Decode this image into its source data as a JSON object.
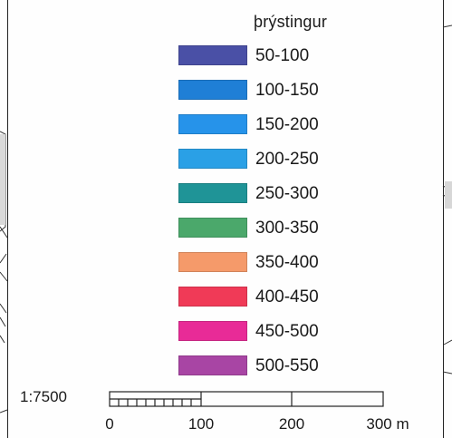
{
  "legend": {
    "title": "þrýstingur",
    "items": [
      {
        "label": "50-100",
        "color": "#4a50a6"
      },
      {
        "label": "100-150",
        "color": "#1f7fd6"
      },
      {
        "label": "150-200",
        "color": "#2693ea"
      },
      {
        "label": "200-250",
        "color": "#2aa0e6"
      },
      {
        "label": "250-300",
        "color": "#1f9497"
      },
      {
        "label": "300-350",
        "color": "#4ba86b"
      },
      {
        "label": "350-400",
        "color": "#f59a6a"
      },
      {
        "label": "400-450",
        "color": "#f03a57"
      },
      {
        "label": "450-500",
        "color": "#e82b97"
      },
      {
        "label": "500-550",
        "color": "#a845a4"
      }
    ]
  },
  "scale": {
    "ratio_label": "1:7500",
    "ticks": [
      "0",
      "100",
      "200",
      "300 m"
    ]
  }
}
